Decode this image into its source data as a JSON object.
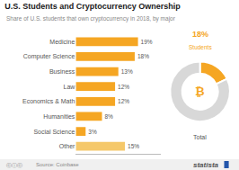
{
  "chart_data": [
    {
      "type": "bar",
      "orientation": "horizontal",
      "title": "U.S. Students and Cryptocurrency Ownership",
      "subtitle": "Share of U.S. students that own cryptocurrency in 2018, by major",
      "categories": [
        "Medicine",
        "Computer Science",
        "Business",
        "Law",
        "Economics & Math",
        "Humanities",
        "Social Science",
        "Other"
      ],
      "values": [
        19,
        18,
        13,
        12,
        12,
        8,
        3,
        15
      ],
      "value_labels": [
        "19%",
        "18%",
        "13%",
        "12%",
        "12%",
        "8%",
        "3%",
        "15%"
      ],
      "data_labels": true,
      "colors": [
        "#F5A623",
        "#F5A623",
        "#F5A623",
        "#F5A623",
        "#F5A623",
        "#F5A623",
        "#F5A623",
        "#F5C86A"
      ],
      "xlim": [
        0,
        26
      ],
      "xticks": [],
      "tick_labels": "y",
      "grid": false,
      "annotations": [
        "ⓒⓘⓒ",
        "Source: Coinbase",
        "statista"
      ]
    },
    {
      "type": "pie",
      "values": [
        18,
        82
      ],
      "colors": [
        "#F5A623",
        "#D8D8D8"
      ],
      "annotations": [
        "₿",
        "18%",
        "Students",
        "Total"
      ]
    }
  ]
}
